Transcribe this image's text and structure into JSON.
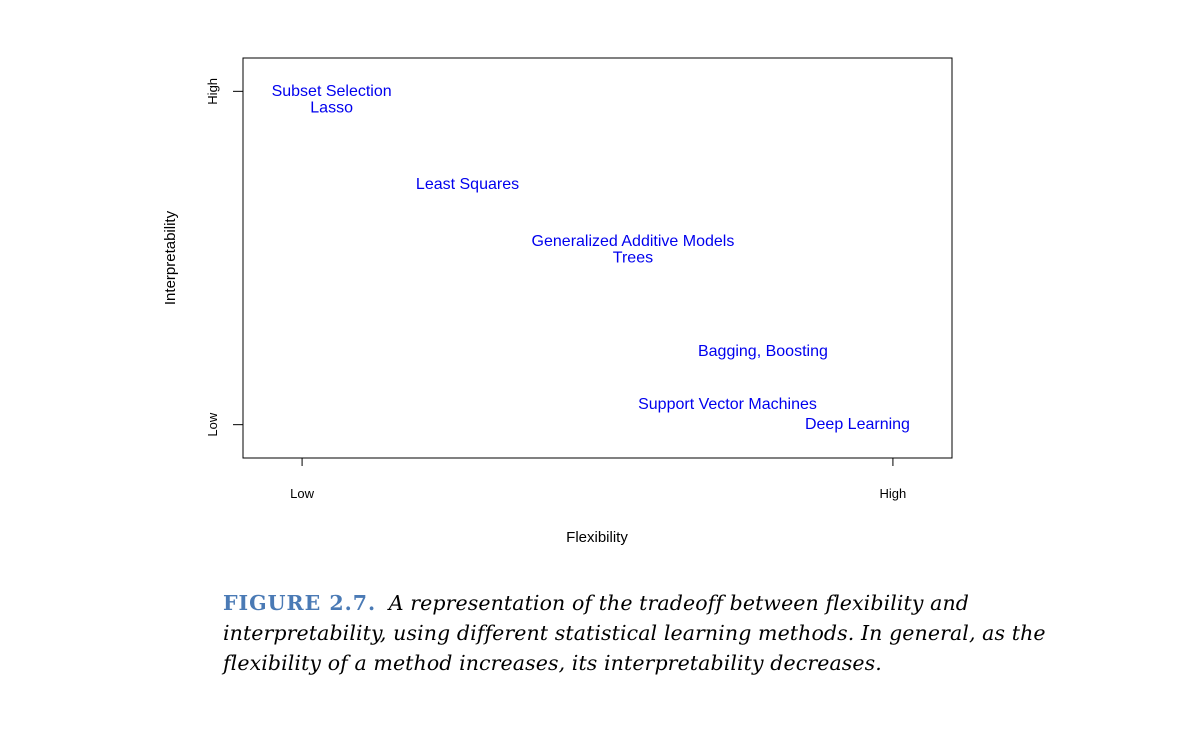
{
  "chart_data": {
    "type": "scatter",
    "xlabel": "Flexibility",
    "ylabel": "Interpretability",
    "x_ticks": [
      {
        "value": 0,
        "label": "Low"
      },
      {
        "value": 1,
        "label": "High"
      }
    ],
    "y_ticks": [
      {
        "value": 0,
        "label": "Low"
      },
      {
        "value": 1,
        "label": "High"
      }
    ],
    "xlim": [
      -0.1,
      1.1
    ],
    "ylim": [
      -0.1,
      1.1
    ],
    "grid": false,
    "label_color": "#0000ee",
    "points": [
      {
        "label": "Subset Selection",
        "x": 0.05,
        "y": 1.0
      },
      {
        "label": "Lasso",
        "x": 0.05,
        "y": 0.95
      },
      {
        "label": "Least Squares",
        "x": 0.28,
        "y": 0.72
      },
      {
        "label": "Generalized Additive Models",
        "x": 0.56,
        "y": 0.55
      },
      {
        "label": "Trees",
        "x": 0.56,
        "y": 0.5
      },
      {
        "label": "Bagging, Boosting",
        "x": 0.78,
        "y": 0.22
      },
      {
        "label": "Support Vector Machines",
        "x": 0.72,
        "y": 0.06
      },
      {
        "label": "Deep Learning",
        "x": 0.94,
        "y": 0.0
      }
    ]
  },
  "caption": {
    "figure_label": "FIGURE 2.7.",
    "text": "A representation of the tradeoff between flexibility and interpretability, using different statistical learning methods. In general, as the flexibility of a method increases, its interpretability decreases."
  }
}
